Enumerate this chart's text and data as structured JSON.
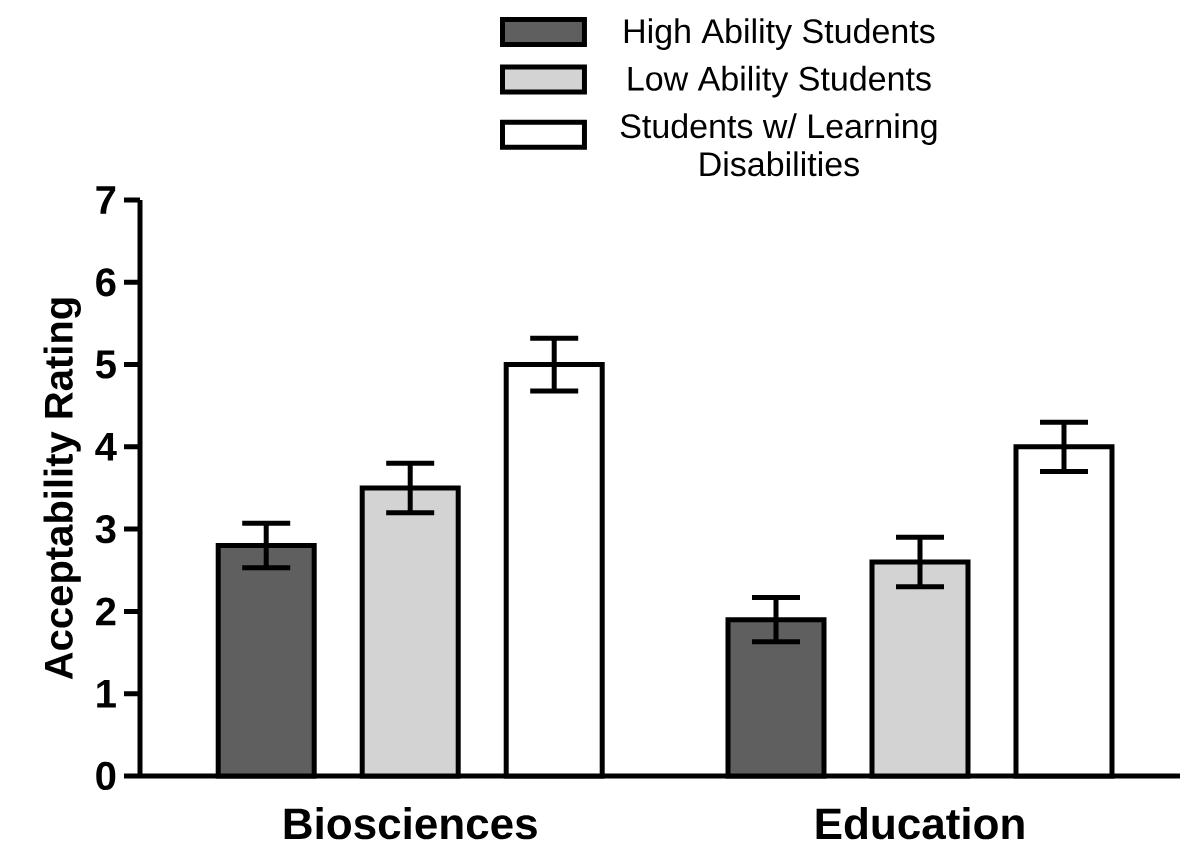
{
  "chart_data": {
    "type": "bar",
    "ylabel": "Acceptability Rating",
    "categories": [
      "Biosciences",
      "Education"
    ],
    "series": [
      {
        "name": "High Ability Students",
        "color": "#5f5f5f",
        "values": [
          2.8,
          1.9
        ],
        "errors": [
          0.27,
          0.27
        ]
      },
      {
        "name": "Low Ability Students",
        "color": "#d3d3d3",
        "values": [
          3.5,
          2.6
        ],
        "errors": [
          0.3,
          0.3
        ]
      },
      {
        "name": "Students w/ Learning Disabilities",
        "color": "#ffffff",
        "values": [
          5.0,
          4.0
        ],
        "errors": [
          0.32,
          0.3
        ]
      }
    ],
    "ylim": [
      0,
      7
    ],
    "yticks": [
      0,
      1,
      2,
      3,
      4,
      5,
      6,
      7
    ],
    "legend": "top right",
    "grid": false
  }
}
